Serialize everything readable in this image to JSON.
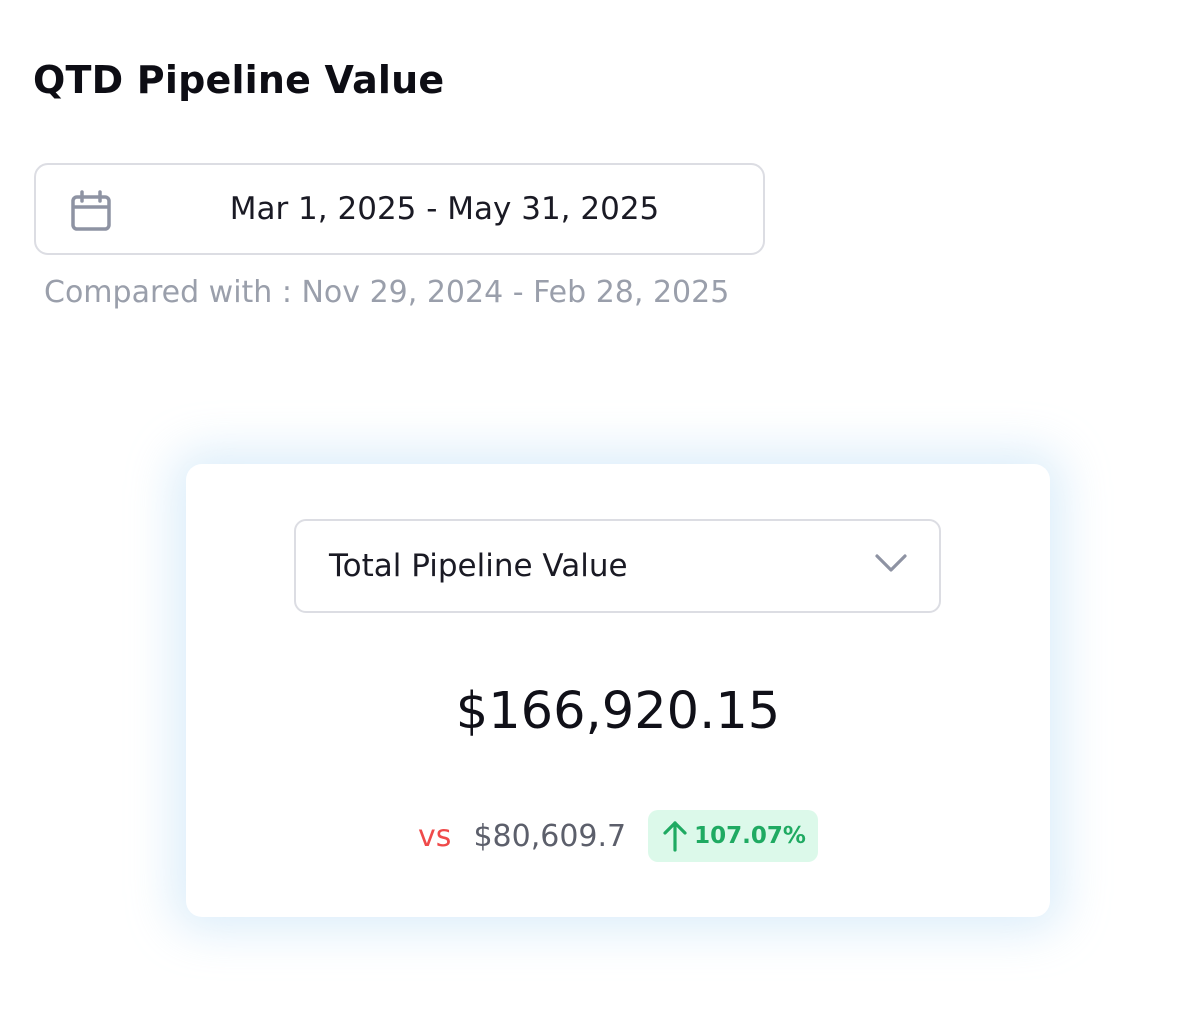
{
  "header": {
    "title": "QTD Pipeline Value"
  },
  "date_range": {
    "icon": "calendar-icon",
    "value": "Mar 1, 2025 - May 31, 2025",
    "comparison": "Compared with : Nov 29, 2024 - Feb 28, 2025"
  },
  "metric_card": {
    "dropdown": {
      "selected": "Total Pipeline Value",
      "icon": "chevron-down-icon"
    },
    "value": "$166,920.15",
    "vs_label": "vs",
    "previous_value": "$80,609.7",
    "change": {
      "icon": "arrow-up-icon",
      "percent": "107.07%",
      "color": "#1faa62",
      "background": "#dcf9ea"
    }
  },
  "colors": {
    "vs": "#ef4a4a",
    "border": "#dcdde3",
    "muted_text": "#9a9fab"
  }
}
